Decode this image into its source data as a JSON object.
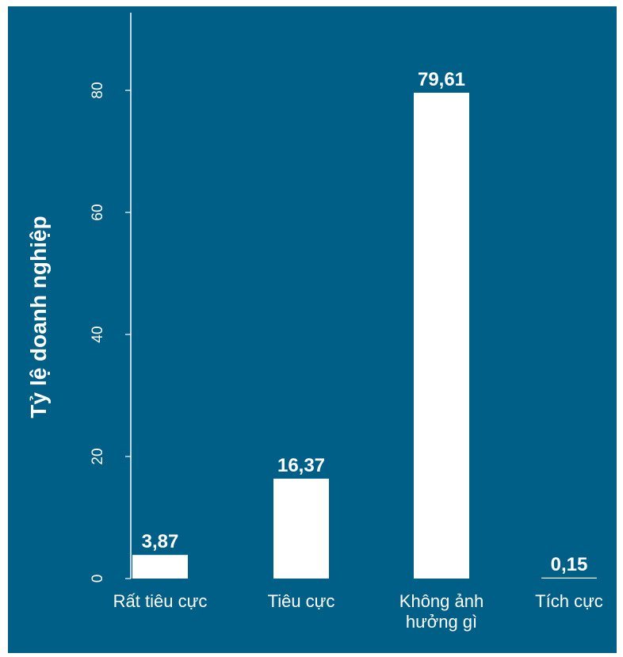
{
  "colors": {
    "background": "#005f87",
    "bar": "#ffffff",
    "text": "#ffffff"
  },
  "chart_data": {
    "type": "bar",
    "title": "",
    "xlabel": "",
    "ylabel": "Tỷ lệ doanh nghiệp",
    "categories": [
      [
        "Rất tiêu cực"
      ],
      [
        "Tiêu cực"
      ],
      [
        "Không ảnh",
        "hưởng gì"
      ],
      [
        "Tích cực"
      ]
    ],
    "values": [
      3.87,
      16.37,
      79.61,
      0.15
    ],
    "value_labels": [
      "3,87",
      "16,37",
      "79,61",
      "0,15"
    ],
    "ylim": [
      0,
      92
    ],
    "yticks": [
      0,
      20,
      40,
      60,
      80
    ],
    "ytick_labels": [
      "0",
      "20",
      "40",
      "60",
      "80"
    ],
    "grid": false,
    "legend": "none"
  }
}
